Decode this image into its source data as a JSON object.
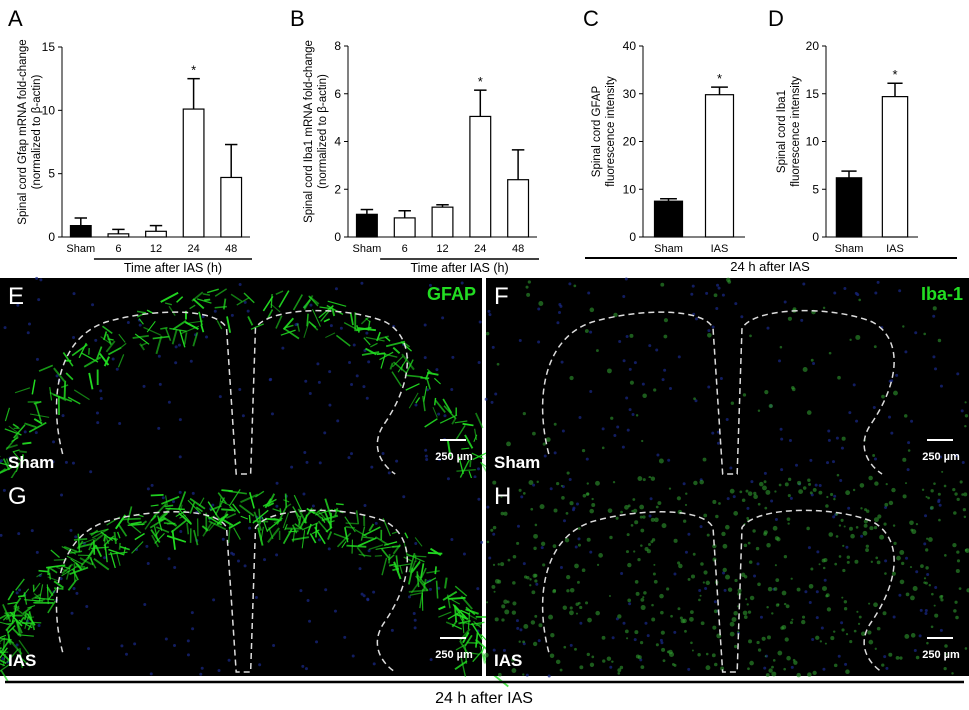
{
  "chart_data": [
    {
      "type": "bar",
      "panel": "A",
      "ylabel": [
        "Spinal cord Gfap mRNA fold-change",
        "(normalized to β-actin)"
      ],
      "xlabel": "Time after IAS (h)",
      "categories": [
        "Sham",
        "6",
        "12",
        "24",
        "48"
      ],
      "values": [
        0.9,
        0.25,
        0.45,
        10.1,
        4.7
      ],
      "errors": [
        0.6,
        0.35,
        0.45,
        2.4,
        2.6
      ],
      "colors": [
        "#000000",
        "#ffffff",
        "#ffffff",
        "#ffffff",
        "#ffffff"
      ],
      "significance": [
        null,
        null,
        null,
        "*",
        null
      ],
      "ylim": [
        0,
        15
      ],
      "yticks": [
        0,
        5,
        10,
        15
      ]
    },
    {
      "type": "bar",
      "panel": "B",
      "ylabel": [
        "Spinal cord Iba1 mRNA fold-change",
        "(normalized to β-actin)"
      ],
      "xlabel": "Time after IAS (h)",
      "categories": [
        "Sham",
        "6",
        "12",
        "24",
        "48"
      ],
      "values": [
        0.95,
        0.8,
        1.25,
        5.05,
        2.4
      ],
      "errors": [
        0.2,
        0.3,
        0.1,
        1.1,
        1.25
      ],
      "colors": [
        "#000000",
        "#ffffff",
        "#ffffff",
        "#ffffff",
        "#ffffff"
      ],
      "significance": [
        null,
        null,
        null,
        "*",
        null
      ],
      "ylim": [
        0,
        8
      ],
      "yticks": [
        0,
        2,
        4,
        6,
        8
      ]
    },
    {
      "type": "bar",
      "panel": "C",
      "ylabel": [
        "Spinal cord GFAP",
        "fluorescence intensity"
      ],
      "categories": [
        "Sham",
        "IAS"
      ],
      "values": [
        7.5,
        29.8
      ],
      "errors": [
        0.5,
        1.6
      ],
      "colors": [
        "#000000",
        "#ffffff"
      ],
      "significance": [
        null,
        "*"
      ],
      "ylim": [
        0,
        40
      ],
      "yticks": [
        0,
        10,
        20,
        30,
        40
      ]
    },
    {
      "type": "bar",
      "panel": "D",
      "ylabel": [
        "Spinal cord Iba1",
        "fluorescence intensity"
      ],
      "categories": [
        "Sham",
        "IAS"
      ],
      "values": [
        6.2,
        14.7
      ],
      "errors": [
        0.7,
        1.4
      ],
      "colors": [
        "#000000",
        "#ffffff"
      ],
      "significance": [
        null,
        "*"
      ],
      "ylim": [
        0,
        20
      ],
      "yticks": [
        0,
        5,
        10,
        15,
        20
      ]
    }
  ],
  "shared_xlabel": "24 h after IAS",
  "images": [
    {
      "label": "E",
      "stain": "GFAP",
      "group": "Sham",
      "scale": "250 µm"
    },
    {
      "label": "F",
      "stain": "Iba-1",
      "group": "Sham",
      "scale": "250 µm"
    },
    {
      "label": "G",
      "group": "IAS",
      "scale": "250 µm"
    },
    {
      "label": "H",
      "group": "IAS",
      "scale": "250 µm"
    }
  ],
  "footer": "24 h after IAS"
}
